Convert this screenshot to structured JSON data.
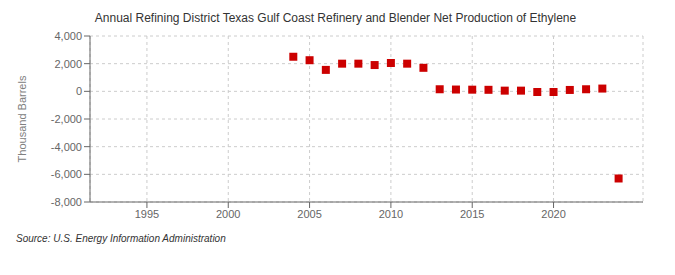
{
  "chart_data": {
    "type": "scatter",
    "title": "Annual Refining District Texas Gulf Coast Refinery and Blender Net Production of Ethylene",
    "ylabel": "Thousand Barrels",
    "annotation": "Source: U.S. Energy Information Administration",
    "x": [
      2004,
      2005,
      2006,
      2007,
      2008,
      2009,
      2010,
      2011,
      2012,
      2013,
      2014,
      2015,
      2016,
      2017,
      2018,
      2019,
      2020,
      2021,
      2022,
      2023,
      2024
    ],
    "values": [
      2500,
      2250,
      1550,
      2000,
      2000,
      1900,
      2050,
      2000,
      1700,
      150,
      130,
      120,
      110,
      50,
      50,
      -50,
      -50,
      100,
      150,
      200,
      -6300
    ],
    "color": "#cc0000",
    "marker": "square",
    "grid": true,
    "xlim": [
      1991.5,
      2025.5
    ],
    "xticks": [
      1995,
      2000,
      2005,
      2010,
      2015,
      2020
    ],
    "ylim": [
      -8000,
      4000
    ],
    "yticks": [
      {
        "value": -8000,
        "label": "-8,000"
      },
      {
        "value": -6000,
        "label": "-6,000"
      },
      {
        "value": -4000,
        "label": "-4,000"
      },
      {
        "value": -2000,
        "label": "-2,000"
      },
      0,
      {
        "value": 2000,
        "label": "2,000"
      },
      {
        "value": 4000,
        "label": "4,000"
      }
    ]
  }
}
